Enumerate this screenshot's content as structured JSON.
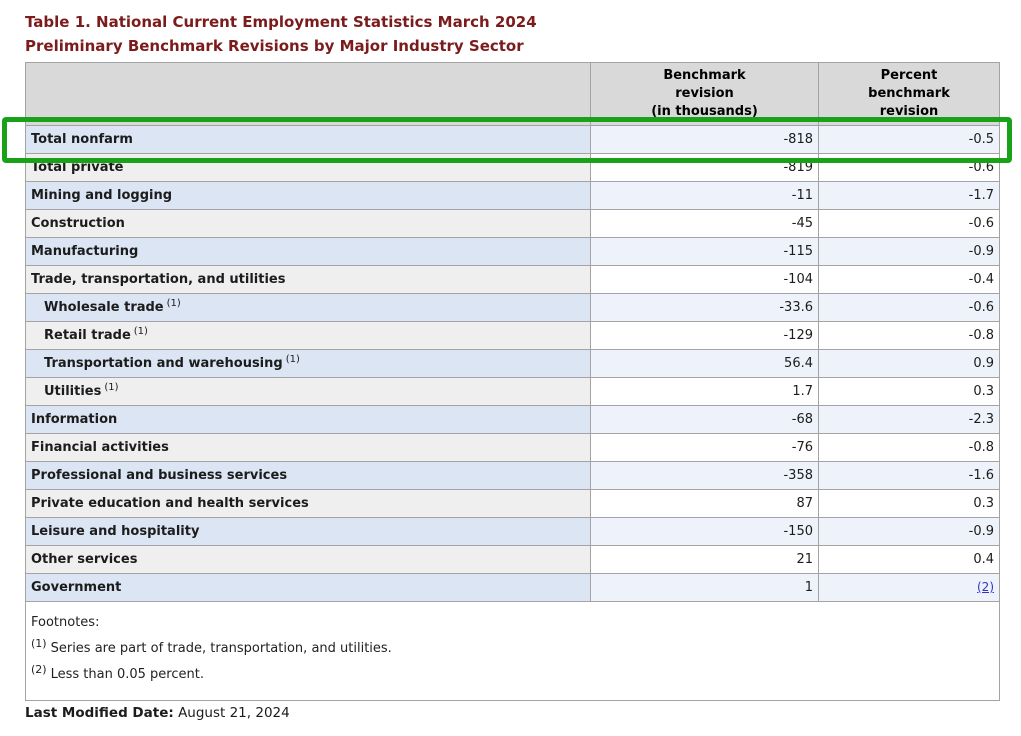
{
  "page": {
    "title_line1": "Table 1. National Current Employment Statistics March 2024",
    "title_line2": "Preliminary Benchmark Revisions by Major Industry Sector",
    "last_modified_label": "Last Modified Date:",
    "last_modified_value": "August 21, 2024"
  },
  "table": {
    "header": {
      "col1": "",
      "col2": "Benchmark\nrevision\n(in thousands)",
      "col3": "Percent\nbenchmark\nrevision"
    },
    "rows": [
      {
        "label": "Total nonfarm",
        "sup": "",
        "indent": false,
        "benchmark": "-818",
        "percent": "-0.5",
        "percent_link": false,
        "highlighted": true
      },
      {
        "label": "Total private",
        "sup": "",
        "indent": false,
        "benchmark": "-819",
        "percent": "-0.6",
        "percent_link": false,
        "highlighted": false
      },
      {
        "label": "Mining and logging",
        "sup": "",
        "indent": false,
        "benchmark": "-11",
        "percent": "-1.7",
        "percent_link": false,
        "highlighted": false
      },
      {
        "label": "Construction",
        "sup": "",
        "indent": false,
        "benchmark": "-45",
        "percent": "-0.6",
        "percent_link": false,
        "highlighted": false
      },
      {
        "label": "Manufacturing",
        "sup": "",
        "indent": false,
        "benchmark": "-115",
        "percent": "-0.9",
        "percent_link": false,
        "highlighted": false
      },
      {
        "label": "Trade, transportation, and utilities",
        "sup": "",
        "indent": false,
        "benchmark": "-104",
        "percent": "-0.4",
        "percent_link": false,
        "highlighted": false
      },
      {
        "label": "Wholesale trade",
        "sup": "(1)",
        "indent": true,
        "benchmark": "-33.6",
        "percent": "-0.6",
        "percent_link": false,
        "highlighted": false
      },
      {
        "label": "Retail trade",
        "sup": "(1)",
        "indent": true,
        "benchmark": "-129",
        "percent": "-0.8",
        "percent_link": false,
        "highlighted": false
      },
      {
        "label": "Transportation and warehousing",
        "sup": "(1)",
        "indent": true,
        "benchmark": "56.4",
        "percent": "0.9",
        "percent_link": false,
        "highlighted": false
      },
      {
        "label": "Utilities",
        "sup": "(1)",
        "indent": true,
        "benchmark": "1.7",
        "percent": "0.3",
        "percent_link": false,
        "highlighted": false
      },
      {
        "label": "Information",
        "sup": "",
        "indent": false,
        "benchmark": "-68",
        "percent": "-2.3",
        "percent_link": false,
        "highlighted": false
      },
      {
        "label": "Financial activities",
        "sup": "",
        "indent": false,
        "benchmark": "-76",
        "percent": "-0.8",
        "percent_link": false,
        "highlighted": false
      },
      {
        "label": "Professional and business services",
        "sup": "",
        "indent": false,
        "benchmark": "-358",
        "percent": "-1.6",
        "percent_link": false,
        "highlighted": false
      },
      {
        "label": "Private education and health services",
        "sup": "",
        "indent": false,
        "benchmark": "87",
        "percent": "0.3",
        "percent_link": false,
        "highlighted": false
      },
      {
        "label": "Leisure and hospitality",
        "sup": "",
        "indent": false,
        "benchmark": "-150",
        "percent": "-0.9",
        "percent_link": false,
        "highlighted": false
      },
      {
        "label": "Other services",
        "sup": "",
        "indent": false,
        "benchmark": "21",
        "percent": "0.4",
        "percent_link": false,
        "highlighted": false
      },
      {
        "label": "Government",
        "sup": "",
        "indent": false,
        "benchmark": "1",
        "percent": "(2)",
        "percent_link": true,
        "highlighted": false
      }
    ],
    "footnotes": {
      "heading": "Footnotes:",
      "items": [
        {
          "marker": "(1)",
          "text": "Series are part of trade, transportation, and utilities."
        },
        {
          "marker": "(2)",
          "text": "Less than 0.05 percent."
        }
      ]
    }
  },
  "annotation": {
    "description": "green highlight box around Total nonfarm row"
  },
  "colors": {
    "title_maroon": "#7b1b1b",
    "header_bg": "#d9d9d9",
    "row_label_blue": "#dbe5f3",
    "row_label_gray": "#efefef",
    "row_value_blue": "#eef2fb",
    "row_value_white": "#ffffff",
    "border_gray": "#a3a3a3",
    "highlight_green": "#1aa11a",
    "link_blue": "#3333cc"
  }
}
